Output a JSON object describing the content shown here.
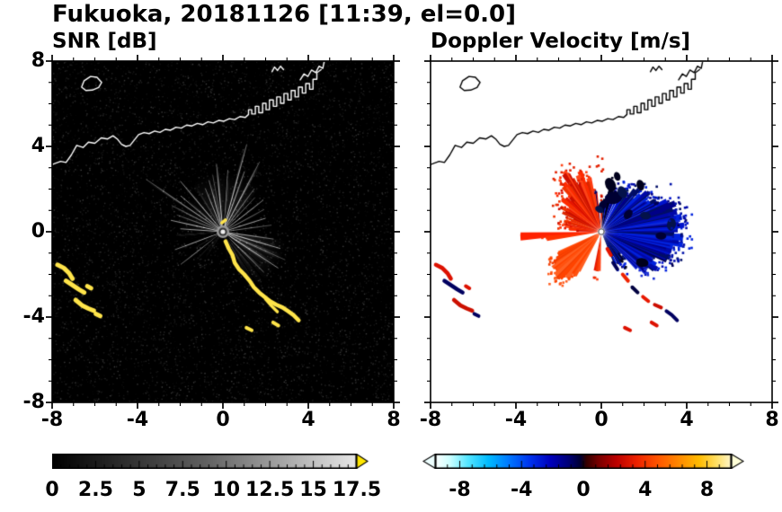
{
  "figure": {
    "title": "Fukuoka, 20181126 [11:39, el=0.0]",
    "background": "#ffffff",
    "text_color": "#000000"
  },
  "panels": [
    {
      "id": "snr",
      "title": "SNR [dB]",
      "xtick_labels": [
        "-8",
        "-4",
        "0",
        "4",
        "8"
      ],
      "ytick_labels": [
        "8",
        "4",
        "0",
        "-4",
        "-8"
      ],
      "bg_color": "#000000",
      "coast_color": "#ffffff",
      "echo_color": "#ffe44a"
    },
    {
      "id": "doppler",
      "title": "Doppler Velocity [m/s]",
      "xtick_labels": [
        "-8",
        "-4",
        "0",
        "4",
        "8"
      ],
      "ytick_labels": [],
      "bg_color": "#ffffff",
      "coast_color": "#000000",
      "negative_color": "#0011bb",
      "positive_color": "#ee2200"
    }
  ],
  "colorbars": [
    {
      "for": "snr",
      "min": 0,
      "max": 17.5,
      "tick_labels": [
        "0",
        "2.5",
        "5",
        "7.5",
        "10",
        "12.5",
        "15",
        "17.5"
      ],
      "tick_values": [
        0,
        2.5,
        5,
        7.5,
        10,
        12.5,
        15,
        17.5
      ],
      "minor_step": 0.5,
      "gradient": [
        [
          0,
          "#000000"
        ],
        [
          0.5,
          "#606060"
        ],
        [
          1,
          "#e8e8e8"
        ]
      ],
      "over_arrow_color": "#ffe600"
    },
    {
      "for": "doppler",
      "min": -9.6,
      "max": 9.6,
      "tick_labels": [
        "-8",
        "-4",
        "0",
        "4",
        "8"
      ],
      "tick_values": [
        -8,
        -4,
        0,
        4,
        8
      ],
      "minor_step": 0.8,
      "gradient": [
        [
          0,
          "#ffffff"
        ],
        [
          0.05,
          "#ccffff"
        ],
        [
          0.11,
          "#55e6ff"
        ],
        [
          0.18,
          "#00bbff"
        ],
        [
          0.25,
          "#0077ff"
        ],
        [
          0.32,
          "#0033ee"
        ],
        [
          0.39,
          "#0000bb"
        ],
        [
          0.45,
          "#000077"
        ],
        [
          0.49,
          "#000033"
        ],
        [
          0.51,
          "#330000"
        ],
        [
          0.55,
          "#770000"
        ],
        [
          0.61,
          "#bb0000"
        ],
        [
          0.68,
          "#ee2200"
        ],
        [
          0.75,
          "#ff5500"
        ],
        [
          0.82,
          "#ff8800"
        ],
        [
          0.89,
          "#ffbb00"
        ],
        [
          0.95,
          "#ffe066"
        ],
        [
          1,
          "#fff7cc"
        ]
      ],
      "under_arrow_color": "#eeffff",
      "over_arrow_color": "#ffffd8"
    }
  ],
  "chart_data": [
    {
      "type": "heatmap",
      "title": "SNR [dB]",
      "xlabel": "",
      "ylabel": "",
      "xlim": [
        -8,
        8
      ],
      "ylim": [
        -8,
        8
      ],
      "xticks": [
        -8,
        -4,
        0,
        4,
        8
      ],
      "yticks": [
        -8,
        -4,
        0,
        4,
        8
      ],
      "colorbar": {
        "range": [
          0,
          17.5
        ],
        "ticks": [
          0,
          2.5,
          5,
          7.5,
          10,
          12.5,
          15,
          17.5
        ],
        "colormap": "black-to-light-gray grayscale with yellow over-range arrow"
      },
      "content": {
        "radar_site": [
          0,
          0
        ],
        "background": "black with weak gray noise speckle",
        "features": [
          "bright white/gray radial beams radiating from the radar at the origin, mainly toward N, NW, NE and a broad fan toward SE out to r~3",
          "thin black shadow spokes through the beam fans",
          "yellow (>17.5 dB) curved clutter arcs near (-7.5,-1.7), (-7,-2.5), (-6.5,-3.4), (-5.9,-3.9)",
          "yellow curved echo track from (0.1,-0.5) bending to (3.6,-4.2), small yellow dashes near (1.2,-4.6) and (2.5,-4.3)",
          "white coastline across the north (y~3 to 8) with jagged port structures near x=1.5 to 4.5 and an island near (-6,7)"
        ]
      }
    },
    {
      "type": "heatmap",
      "title": "Doppler Velocity [m/s]",
      "xlabel": "",
      "ylabel": "",
      "xlim": [
        -8,
        8
      ],
      "ylim": [
        -8,
        8
      ],
      "xticks": [
        -8,
        -4,
        0,
        4,
        8
      ],
      "yticks": [
        -8,
        -4,
        0,
        4,
        8
      ],
      "colorbar": {
        "range": [
          -9.6,
          9.6
        ],
        "ticks": [
          -8,
          -4,
          0,
          4,
          8
        ],
        "colormap": "diverging white-cyan-blue-navy-black-red-orange-yellow with arrows both ends"
      },
      "content": {
        "radar_site": [
          0,
          0
        ],
        "background": "white",
        "features": [
          "red/orange (positive ~+2 to +6 m/s) fan west and northwest of the radar out to r~3, plus a bright orange fan toward the southwest",
          "narrow red ray pointing west reaching r~3.9",
          "blue/navy (negative ~-2 to -8 m/s) fan east of the radar out to r~3.8 with jagged edge",
          "dark navy aliased patches north/northeast of the radar near the red-blue boundary",
          "scattered red and navy ship-track echoes along the arc from (0.3,-1) to (3.5,-4.2) and clutter arcs near (-7.5,-1.7) to (-5.9,-3.9)",
          "black coastline along the north edge, small white dot at the radar site"
        ]
      }
    }
  ]
}
